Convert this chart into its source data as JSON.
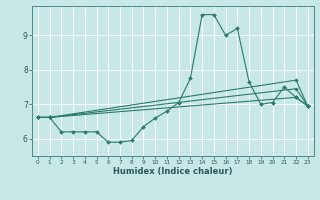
{
  "xlabel": "Humidex (Indice chaleur)",
  "xlim": [
    -0.5,
    23.5
  ],
  "ylim": [
    5.5,
    9.85
  ],
  "yticks": [
    6,
    7,
    8,
    9
  ],
  "xticks": [
    0,
    1,
    2,
    3,
    4,
    5,
    6,
    7,
    8,
    9,
    10,
    11,
    12,
    13,
    14,
    15,
    16,
    17,
    18,
    19,
    20,
    21,
    22,
    23
  ],
  "bg_color": "#c8e8e8",
  "line_color": "#2a7a6a",
  "grid_color": "#ffffff",
  "lines": [
    {
      "x": [
        0,
        1,
        2,
        3,
        4,
        5,
        6,
        7,
        8,
        9,
        10,
        11,
        12,
        13,
        14,
        15,
        16,
        17,
        18,
        19,
        20,
        21,
        22,
        23
      ],
      "y": [
        6.62,
        6.62,
        6.2,
        6.2,
        6.2,
        6.2,
        5.9,
        5.9,
        5.95,
        6.35,
        6.6,
        6.8,
        7.05,
        7.75,
        9.6,
        9.6,
        9.0,
        9.2,
        7.65,
        7.0,
        7.05,
        7.5,
        7.2,
        6.95
      ]
    },
    {
      "x": [
        0,
        1,
        22,
        23
      ],
      "y": [
        6.62,
        6.62,
        7.7,
        6.95
      ]
    },
    {
      "x": [
        0,
        1,
        22,
        23
      ],
      "y": [
        6.62,
        6.62,
        7.45,
        6.95
      ]
    },
    {
      "x": [
        0,
        1,
        22,
        23
      ],
      "y": [
        6.62,
        6.62,
        7.2,
        6.95
      ]
    }
  ]
}
